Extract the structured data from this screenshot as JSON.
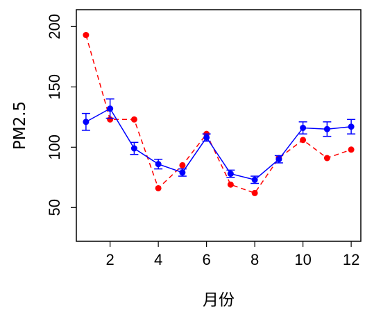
{
  "chart_data": {
    "type": "line",
    "xlabel": "月份",
    "ylabel": "PM2.5",
    "xlim": [
      0.6,
      12.4
    ],
    "ylim": [
      22,
      214
    ],
    "xticks": [
      2,
      4,
      6,
      8,
      10,
      12
    ],
    "yticks": [
      50,
      100,
      150,
      200
    ],
    "grid": false,
    "legend": "none",
    "series": [
      {
        "color": "#0000ff",
        "style": "solid",
        "error_bars": true,
        "x": [
          1,
          2,
          3,
          4,
          5,
          6,
          7,
          8,
          9,
          10,
          11,
          12
        ],
        "y": [
          121,
          132,
          99,
          86,
          79,
          108,
          78,
          73,
          90,
          116,
          115,
          117
        ],
        "err": [
          7,
          8,
          5,
          4,
          3,
          3,
          3,
          3,
          3,
          5,
          6,
          6
        ]
      },
      {
        "color": "#ff0000",
        "style": "dashed",
        "error_bars": false,
        "x": [
          1,
          2,
          3,
          4,
          5,
          6,
          7,
          8,
          9,
          10,
          11,
          12
        ],
        "y": [
          193,
          123,
          123,
          66,
          85,
          111,
          69,
          62,
          91,
          106,
          91,
          98
        ]
      }
    ]
  }
}
